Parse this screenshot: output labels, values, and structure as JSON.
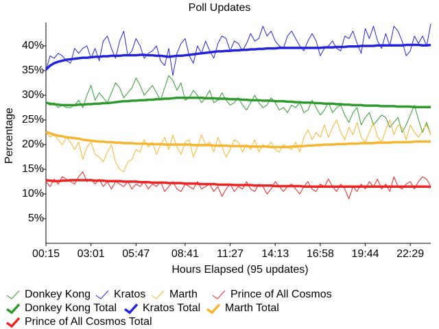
{
  "chart_data": {
    "type": "line",
    "title": "Poll Updates",
    "xlabel": "Hours Elapsed (95 updates)",
    "ylabel": "Percentage",
    "categories": [
      "00:15",
      null,
      null,
      null,
      null,
      null,
      null,
      null,
      null,
      null,
      null,
      "03:01",
      null,
      null,
      null,
      null,
      null,
      null,
      null,
      null,
      null,
      null,
      "05:47",
      null,
      null,
      null,
      null,
      null,
      null,
      null,
      null,
      null,
      null,
      null,
      "08:41",
      null,
      null,
      null,
      null,
      null,
      null,
      null,
      null,
      null,
      null,
      "11:27",
      null,
      null,
      null,
      null,
      null,
      null,
      null,
      null,
      null,
      null,
      "14:13",
      null,
      null,
      null,
      null,
      null,
      null,
      null,
      null,
      null,
      null,
      "16:58",
      null,
      null,
      null,
      null,
      null,
      null,
      null,
      null,
      null,
      null,
      "19:44",
      null,
      null,
      null,
      null,
      null,
      null,
      null,
      null,
      null,
      null,
      "22:29",
      null,
      null,
      null,
      null,
      null
    ],
    "ylim": [
      0,
      44.7
    ],
    "yticks": [
      {
        "value": 5,
        "label": "5%"
      },
      {
        "value": 10,
        "label": "10%"
      },
      {
        "value": 15,
        "label": "15%"
      },
      {
        "value": 20,
        "label": "20%"
      },
      {
        "value": 25,
        "label": "25%"
      },
      {
        "value": 30,
        "label": "30%"
      },
      {
        "value": 35,
        "label": "35%"
      },
      {
        "value": 40,
        "label": "40%"
      }
    ],
    "grid": false,
    "legend": "bottom",
    "series": [
      {
        "name": "Donkey Kong",
        "color": "#2e9a2e",
        "values": [
          28.5,
          28.0,
          28.5,
          27.5,
          28.0,
          27.5,
          27.5,
          28.0,
          29.0,
          27.5,
          30.0,
          32.0,
          29.0,
          30.5,
          29.5,
          28.5,
          30.5,
          32.5,
          31.5,
          29.5,
          30.5,
          31.5,
          33.5,
          32.0,
          30.0,
          31.0,
          32.0,
          30.5,
          29.0,
          31.5,
          34.0,
          33.0,
          31.0,
          32.5,
          29.0,
          29.5,
          31.0,
          30.0,
          28.5,
          29.5,
          31.0,
          28.5,
          29.0,
          30.5,
          29.0,
          28.0,
          28.5,
          29.5,
          28.0,
          27.0,
          28.5,
          30.0,
          28.5,
          27.5,
          28.0,
          29.5,
          28.5,
          27.0,
          27.5,
          26.5,
          28.0,
          27.5,
          28.5,
          26.5,
          27.0,
          29.0,
          27.5,
          26.0,
          27.0,
          28.5,
          26.5,
          27.5,
          28.0,
          26.0,
          24.5,
          26.5,
          27.5,
          24.0,
          25.5,
          26.5,
          24.0,
          25.0,
          26.0,
          25.5,
          23.5,
          24.5,
          25.5,
          22.5,
          24.0,
          26.0,
          28.0,
          25.0,
          22.5,
          24.5,
          22.0
        ]
      },
      {
        "name": "Kratos",
        "color": "#2222dd",
        "values": [
          35.0,
          38.0,
          37.5,
          38.5,
          38.0,
          37.0,
          36.5,
          39.5,
          38.5,
          39.5,
          40.0,
          37.5,
          39.5,
          37.0,
          41.0,
          42.0,
          39.5,
          37.5,
          41.0,
          43.0,
          38.0,
          39.0,
          41.5,
          40.0,
          37.5,
          38.5,
          39.0,
          40.0,
          37.0,
          36.0,
          39.5,
          34.0,
          38.5,
          40.5,
          41.5,
          38.0,
          36.5,
          40.0,
          38.5,
          41.0,
          39.0,
          37.5,
          40.5,
          42.0,
          41.5,
          39.0,
          41.0,
          40.5,
          39.0,
          40.5,
          42.5,
          41.0,
          41.5,
          44.0,
          42.0,
          43.0,
          41.0,
          40.0,
          39.5,
          42.0,
          43.0,
          41.5,
          40.0,
          39.0,
          41.0,
          42.5,
          41.0,
          38.0,
          39.5,
          40.0,
          41.0,
          39.5,
          39.0,
          42.0,
          41.5,
          43.0,
          40.5,
          38.5,
          43.5,
          41.5,
          44.0,
          41.0,
          39.5,
          42.5,
          40.0,
          44.0,
          43.0,
          41.0,
          38.0,
          39.0,
          42.0,
          40.5,
          42.0,
          40.0,
          44.5
        ]
      },
      {
        "name": "Marth",
        "color": "#f5b52e",
        "values": [
          22.5,
          21.5,
          22.0,
          21.0,
          20.0,
          21.5,
          20.5,
          19.0,
          20.5,
          17.0,
          19.5,
          20.5,
          18.0,
          17.5,
          16.5,
          18.5,
          20.0,
          16.5,
          15.0,
          14.5,
          16.5,
          17.0,
          19.0,
          18.5,
          21.0,
          19.5,
          20.5,
          18.0,
          20.0,
          21.5,
          19.0,
          22.0,
          19.5,
          18.0,
          20.5,
          21.0,
          17.5,
          19.5,
          22.0,
          20.0,
          20.5,
          18.5,
          21.5,
          19.5,
          17.5,
          19.0,
          21.0,
          20.5,
          18.5,
          20.0,
          19.0,
          21.0,
          18.5,
          20.0,
          19.5,
          20.5,
          19.0,
          18.5,
          20.0,
          19.5,
          19.0,
          20.5,
          18.5,
          21.5,
          23.0,
          21.0,
          22.5,
          21.5,
          24.0,
          21.5,
          23.5,
          25.0,
          22.5,
          21.0,
          23.5,
          22.0,
          24.5,
          21.5,
          20.5,
          22.5,
          24.5,
          21.5,
          20.5,
          23.0,
          25.0,
          22.0,
          24.0,
          23.5,
          21.0,
          24.0,
          22.5,
          21.5,
          23.0,
          24.0,
          22.0
        ]
      },
      {
        "name": "Prince of All Cosmos",
        "color": "#ee2222",
        "values": [
          12.5,
          11.5,
          13.0,
          12.0,
          13.5,
          13.0,
          12.5,
          12.0,
          13.5,
          14.5,
          12.5,
          13.0,
          12.0,
          13.0,
          11.5,
          12.5,
          11.0,
          12.5,
          12.0,
          11.5,
          12.5,
          11.0,
          12.0,
          11.5,
          12.5,
          11.0,
          12.0,
          11.5,
          12.5,
          10.5,
          11.5,
          12.5,
          11.0,
          10.5,
          12.0,
          11.5,
          11.0,
          12.5,
          11.0,
          11.5,
          12.0,
          10.5,
          11.5,
          9.5,
          11.0,
          12.0,
          10.5,
          11.5,
          11.0,
          12.5,
          11.0,
          10.5,
          12.0,
          11.5,
          10.0,
          11.0,
          12.5,
          11.5,
          10.5,
          11.5,
          12.0,
          11.0,
          10.0,
          11.5,
          12.5,
          11.0,
          10.5,
          12.0,
          11.5,
          13.0,
          11.5,
          10.5,
          12.0,
          11.0,
          9.0,
          11.5,
          10.5,
          12.0,
          11.0,
          12.5,
          11.5,
          13.0,
          11.0,
          12.0,
          10.5,
          13.5,
          11.5,
          11.0,
          12.0,
          12.5,
          11.0,
          12.5,
          13.5,
          13.0,
          11.5
        ]
      },
      {
        "name": "Donkey Kong Total",
        "color": "#2e9a2e",
        "values": [
          28.5,
          28.3,
          28.2,
          28.1,
          28.0,
          28.0,
          28.0,
          28.0,
          28.1,
          28.1,
          28.2,
          28.2,
          28.3,
          28.3,
          28.4,
          28.4,
          28.5,
          28.6,
          28.7,
          28.8,
          28.8,
          28.9,
          28.9,
          29.0,
          29.0,
          29.1,
          29.1,
          29.2,
          29.2,
          29.3,
          29.3,
          29.4,
          29.5,
          29.5,
          29.5,
          29.5,
          29.5,
          29.5,
          29.5,
          29.4,
          29.4,
          29.4,
          29.3,
          29.3,
          29.3,
          29.2,
          29.2,
          29.2,
          29.1,
          29.1,
          29.0,
          29.0,
          29.0,
          28.9,
          28.9,
          28.9,
          28.8,
          28.8,
          28.8,
          28.7,
          28.7,
          28.6,
          28.6,
          28.5,
          28.5,
          28.5,
          28.4,
          28.4,
          28.3,
          28.3,
          28.3,
          28.2,
          28.2,
          28.1,
          28.1,
          28.0,
          28.0,
          28.0,
          27.9,
          27.9,
          27.9,
          27.9,
          27.8,
          27.8,
          27.8,
          27.8,
          27.7,
          27.7,
          27.7,
          27.7,
          27.6,
          27.6,
          27.6,
          27.6,
          27.6
        ]
      },
      {
        "name": "Kratos Total",
        "color": "#2222dd",
        "values": [
          35.2,
          36.0,
          36.5,
          36.8,
          37.0,
          37.2,
          37.3,
          37.4,
          37.5,
          37.6,
          37.6,
          37.7,
          37.8,
          37.8,
          37.9,
          37.9,
          38.0,
          38.0,
          38.0,
          38.1,
          38.1,
          38.1,
          38.1,
          38.2,
          38.2,
          38.1,
          38.1,
          38.0,
          38.0,
          37.9,
          37.8,
          37.9,
          38.0,
          38.0,
          38.1,
          38.2,
          38.3,
          38.4,
          38.5,
          38.6,
          38.7,
          38.8,
          38.9,
          38.9,
          39.0,
          39.0,
          39.1,
          39.1,
          39.2,
          39.2,
          39.3,
          39.3,
          39.4,
          39.4,
          39.5,
          39.5,
          39.5,
          39.6,
          39.6,
          39.6,
          39.6,
          39.6,
          39.6,
          39.6,
          39.6,
          39.6,
          39.6,
          39.6,
          39.7,
          39.7,
          39.7,
          39.8,
          39.8,
          39.8,
          39.9,
          39.9,
          39.9,
          40.0,
          40.0,
          40.0,
          40.0,
          40.1,
          40.1,
          40.1,
          40.1,
          40.1,
          40.1,
          40.1,
          40.2,
          40.2,
          40.2,
          40.2,
          40.1,
          40.1,
          40.2
        ]
      },
      {
        "name": "Marth Total",
        "color": "#f5b52e",
        "values": [
          22.6,
          22.3,
          22.0,
          21.8,
          21.7,
          21.5,
          21.4,
          21.3,
          21.2,
          21.0,
          20.9,
          20.8,
          20.7,
          20.6,
          20.6,
          20.5,
          20.5,
          20.4,
          20.4,
          20.3,
          20.3,
          20.3,
          20.2,
          20.2,
          20.2,
          20.1,
          20.1,
          20.1,
          20.1,
          20.0,
          20.0,
          20.0,
          20.0,
          20.0,
          20.0,
          20.0,
          19.9,
          19.9,
          19.9,
          19.9,
          19.9,
          19.8,
          19.8,
          19.8,
          19.8,
          19.7,
          19.7,
          19.7,
          19.7,
          19.7,
          19.6,
          19.6,
          19.6,
          19.6,
          19.6,
          19.5,
          19.5,
          19.5,
          19.5,
          19.5,
          19.6,
          19.6,
          19.7,
          19.7,
          19.8,
          19.8,
          19.9,
          19.9,
          20.0,
          20.0,
          20.0,
          20.1,
          20.1,
          20.1,
          20.2,
          20.2,
          20.2,
          20.3,
          20.3,
          20.3,
          20.3,
          20.4,
          20.4,
          20.4,
          20.4,
          20.5,
          20.5,
          20.5,
          20.5,
          20.5,
          20.6,
          20.6,
          20.6,
          20.6,
          20.6
        ]
      },
      {
        "name": "Prince of All Cosmos Total",
        "color": "#ee2222",
        "values": [
          12.8,
          12.7,
          12.6,
          12.6,
          12.7,
          12.7,
          12.8,
          12.8,
          12.8,
          12.8,
          12.8,
          12.8,
          12.7,
          12.7,
          12.7,
          12.6,
          12.6,
          12.6,
          12.6,
          12.5,
          12.5,
          12.5,
          12.5,
          12.4,
          12.4,
          12.4,
          12.3,
          12.3,
          12.3,
          12.3,
          12.2,
          12.2,
          12.2,
          12.2,
          12.1,
          12.1,
          12.1,
          12.1,
          12.0,
          12.0,
          12.0,
          12.0,
          11.9,
          11.9,
          11.9,
          11.9,
          11.8,
          11.8,
          11.8,
          11.8,
          11.8,
          11.7,
          11.7,
          11.7,
          11.7,
          11.7,
          11.6,
          11.6,
          11.6,
          11.6,
          11.6,
          11.6,
          11.6,
          11.5,
          11.5,
          11.5,
          11.5,
          11.5,
          11.5,
          11.5,
          11.5,
          11.5,
          11.5,
          11.5,
          11.5,
          11.5,
          11.5,
          11.5,
          11.5,
          11.5,
          11.5,
          11.5,
          11.5,
          11.5,
          11.5,
          11.5,
          11.5,
          11.5,
          11.5,
          11.5,
          11.5,
          11.5,
          11.5,
          11.5,
          11.4
        ]
      }
    ]
  }
}
